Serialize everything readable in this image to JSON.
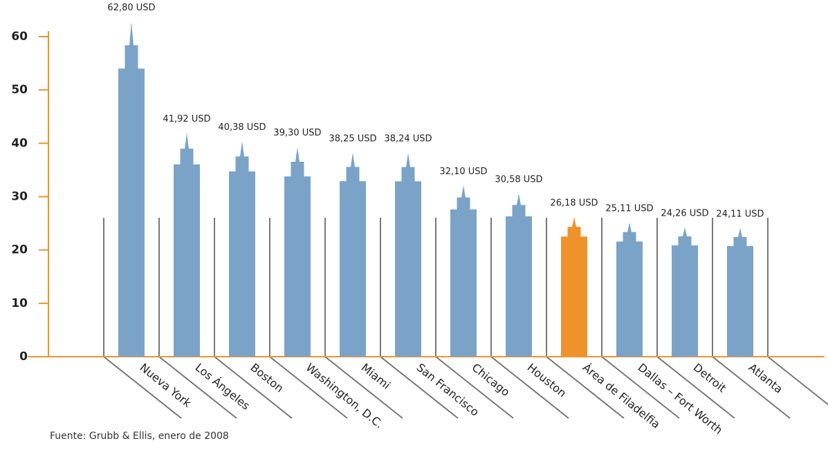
{
  "chart_data": {
    "type": "bar",
    "categories": [
      "Nueva York",
      "Los Ángeles",
      "Boston",
      "Washington, D.C.",
      "Miami",
      "San Francisco",
      "Chicago",
      "Houston",
      "Área de Filadelfia",
      "Dallas – Fort Worth",
      "Detroit",
      "Atlanta"
    ],
    "values": [
      62.8,
      41.92,
      40.38,
      39.3,
      38.25,
      38.24,
      32.1,
      30.58,
      26.18,
      25.11,
      24.26,
      24.11
    ],
    "value_labels": [
      "62,80 USD",
      "41,92 USD",
      "40,38 USD",
      "39,30 USD",
      "38,25 USD",
      "38,24 USD",
      "32,10 USD",
      "30,58 USD",
      "26,18 USD",
      "25,11 USD",
      "24,26 USD",
      "24,11 USD"
    ],
    "colors": [
      "#7ba3c7",
      "#7ba3c7",
      "#7ba3c7",
      "#7ba3c7",
      "#7ba3c7",
      "#7ba3c7",
      "#7ba3c7",
      "#7ba3c7",
      "#f0922b",
      "#7ba3c7",
      "#7ba3c7",
      "#7ba3c7"
    ],
    "ylim": [
      0,
      60
    ],
    "yticks": [
      0,
      10,
      20,
      30,
      40,
      50,
      60
    ],
    "source": "Fuente: Grubb & Ellis, enero de 2008"
  }
}
